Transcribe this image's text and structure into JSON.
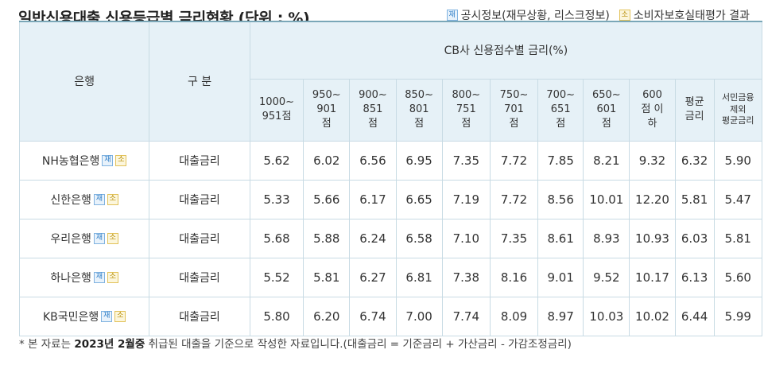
{
  "title": "일반신용대출 신용등급별 금리현황 (단위 : %)",
  "legend": [
    {
      "badge": "재",
      "label": "공시정보(재무상황, 리스크정보)",
      "color": "#2d7dc7"
    },
    {
      "badge": "소",
      "label": "소비자보호실태평가 결과",
      "color": "#b58b00"
    }
  ],
  "table": {
    "header_bank": "은행",
    "header_type": "구 분",
    "header_group": "CB사 신용점수별 금리(%)",
    "columns": [
      [
        "1000~",
        "951점"
      ],
      [
        "950~",
        "901",
        "점"
      ],
      [
        "900~",
        "851",
        "점"
      ],
      [
        "850~",
        "801",
        "점"
      ],
      [
        "800~",
        "751",
        "점"
      ],
      [
        "750~",
        "701",
        "점"
      ],
      [
        "700~",
        "651",
        "점"
      ],
      [
        "650~",
        "601",
        "점"
      ],
      [
        "600",
        "점 이",
        "하"
      ],
      [
        "평균",
        "금리"
      ],
      [
        "서민금융",
        "제외",
        "평균금리"
      ]
    ],
    "rows": [
      {
        "bank": "NH농협은행",
        "badge1": "재",
        "badge2": "소",
        "type": "대출금리",
        "values": [
          "5.62",
          "6.02",
          "6.56",
          "6.95",
          "7.35",
          "7.72",
          "7.85",
          "8.21",
          "9.32",
          "6.32",
          "5.90"
        ]
      },
      {
        "bank": "신한은행",
        "badge1": "재",
        "badge2": "소",
        "type": "대출금리",
        "values": [
          "5.33",
          "5.66",
          "6.17",
          "6.65",
          "7.19",
          "7.72",
          "8.56",
          "10.01",
          "12.20",
          "5.81",
          "5.47"
        ]
      },
      {
        "bank": "우리은행",
        "badge1": "재",
        "badge2": "소",
        "type": "대출금리",
        "values": [
          "5.68",
          "5.88",
          "6.24",
          "6.58",
          "7.10",
          "7.35",
          "8.61",
          "8.93",
          "10.93",
          "6.03",
          "5.81"
        ]
      },
      {
        "bank": "하나은행",
        "badge1": "재",
        "badge2": "소",
        "type": "대출금리",
        "values": [
          "5.52",
          "5.81",
          "6.27",
          "6.81",
          "7.38",
          "8.16",
          "9.01",
          "9.52",
          "10.17",
          "6.13",
          "5.60"
        ]
      },
      {
        "bank": "KB국민은행",
        "badge1": "재",
        "badge2": "소",
        "type": "대출금리",
        "values": [
          "5.80",
          "6.20",
          "6.74",
          "7.00",
          "7.74",
          "8.09",
          "8.97",
          "10.03",
          "10.02",
          "6.44",
          "5.99"
        ]
      }
    ]
  },
  "footnote": {
    "prefix": "* 본 자료는 ",
    "bold": "2023년 2월중",
    "suffix": " 취급된 대출을 기준으로 작성한 자료입니다.(대출금리 = 기준금리 + 가산금리 - 가감조정금리)"
  }
}
